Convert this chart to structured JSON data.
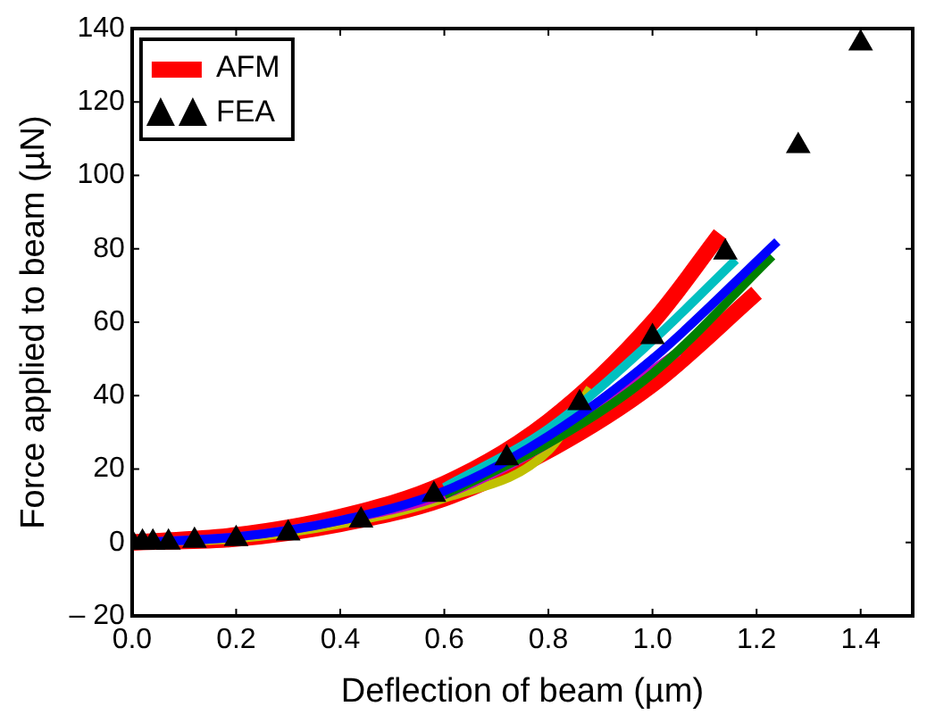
{
  "chart_data": {
    "type": "line",
    "xlabel": "Deflection of beam (µm)",
    "ylabel": "Force applied to beam (µN)",
    "xlim": [
      0,
      1.5
    ],
    "xticks": [
      {
        "value": 0,
        "label": "0.0"
      },
      0.2,
      0.4,
      0.6,
      0.8,
      {
        "value": 1,
        "label": "1.0"
      },
      1.2,
      1.4
    ],
    "ylim": [
      -20,
      140
    ],
    "yticks": [
      {
        "value": -20,
        "label": "– 20"
      },
      0,
      20,
      40,
      60,
      80,
      100,
      120,
      140
    ],
    "grid": false,
    "legend": "top left",
    "line_style": "solid",
    "series": [
      {
        "name": "AFM",
        "color": "#ff0000",
        "x": [
          0,
          0.2,
          0.4,
          0.6,
          0.8,
          1.0,
          1.13
        ],
        "values": [
          0,
          2,
          7,
          16,
          33,
          60,
          84
        ]
      },
      {
        "color": "#ff0000",
        "x": [
          0,
          0.2,
          0.4,
          0.6,
          0.8,
          1.0,
          1.2
        ],
        "values": [
          0,
          1,
          5,
          12,
          25,
          43,
          68
        ]
      },
      {
        "color": "#0000ff",
        "x": [
          0,
          0.2,
          0.4,
          0.6,
          0.8,
          1.0,
          1.24
        ],
        "values": [
          0,
          1.5,
          6,
          14,
          29,
          50,
          82
        ]
      },
      {
        "color": "#008000",
        "x": [
          0.6,
          0.8,
          1.0,
          1.23
        ],
        "values": [
          13,
          27,
          46,
          78
        ]
      },
      {
        "color": "#00c0c0",
        "x": [
          0.6,
          0.8,
          1.0,
          1.16
        ],
        "values": [
          15,
          31,
          55,
          77
        ]
      },
      {
        "color": "#c000c0",
        "x": [
          0,
          0.2,
          0.4,
          0.6,
          0.8,
          1.05
        ],
        "values": [
          0,
          1.5,
          6,
          13,
          27,
          52
        ]
      },
      {
        "color": "#c0c000",
        "x": [
          0,
          0.2,
          0.4,
          0.6,
          0.8,
          0.88
        ],
        "values": [
          0,
          1,
          5,
          12,
          25,
          42
        ]
      },
      {
        "name": "FEA",
        "type": "scatter",
        "marker": "triangle",
        "color": "#000000",
        "x": [
          0,
          0.02,
          0.04,
          0.07,
          0.12,
          0.2,
          0.3,
          0.44,
          0.58,
          0.72,
          0.86,
          1.0,
          1.14,
          1.28,
          1.4
        ],
        "values": [
          0,
          0,
          0,
          0,
          0.5,
          1,
          2.5,
          6,
          13,
          23,
          38,
          56,
          79,
          108,
          136
        ]
      }
    ]
  }
}
